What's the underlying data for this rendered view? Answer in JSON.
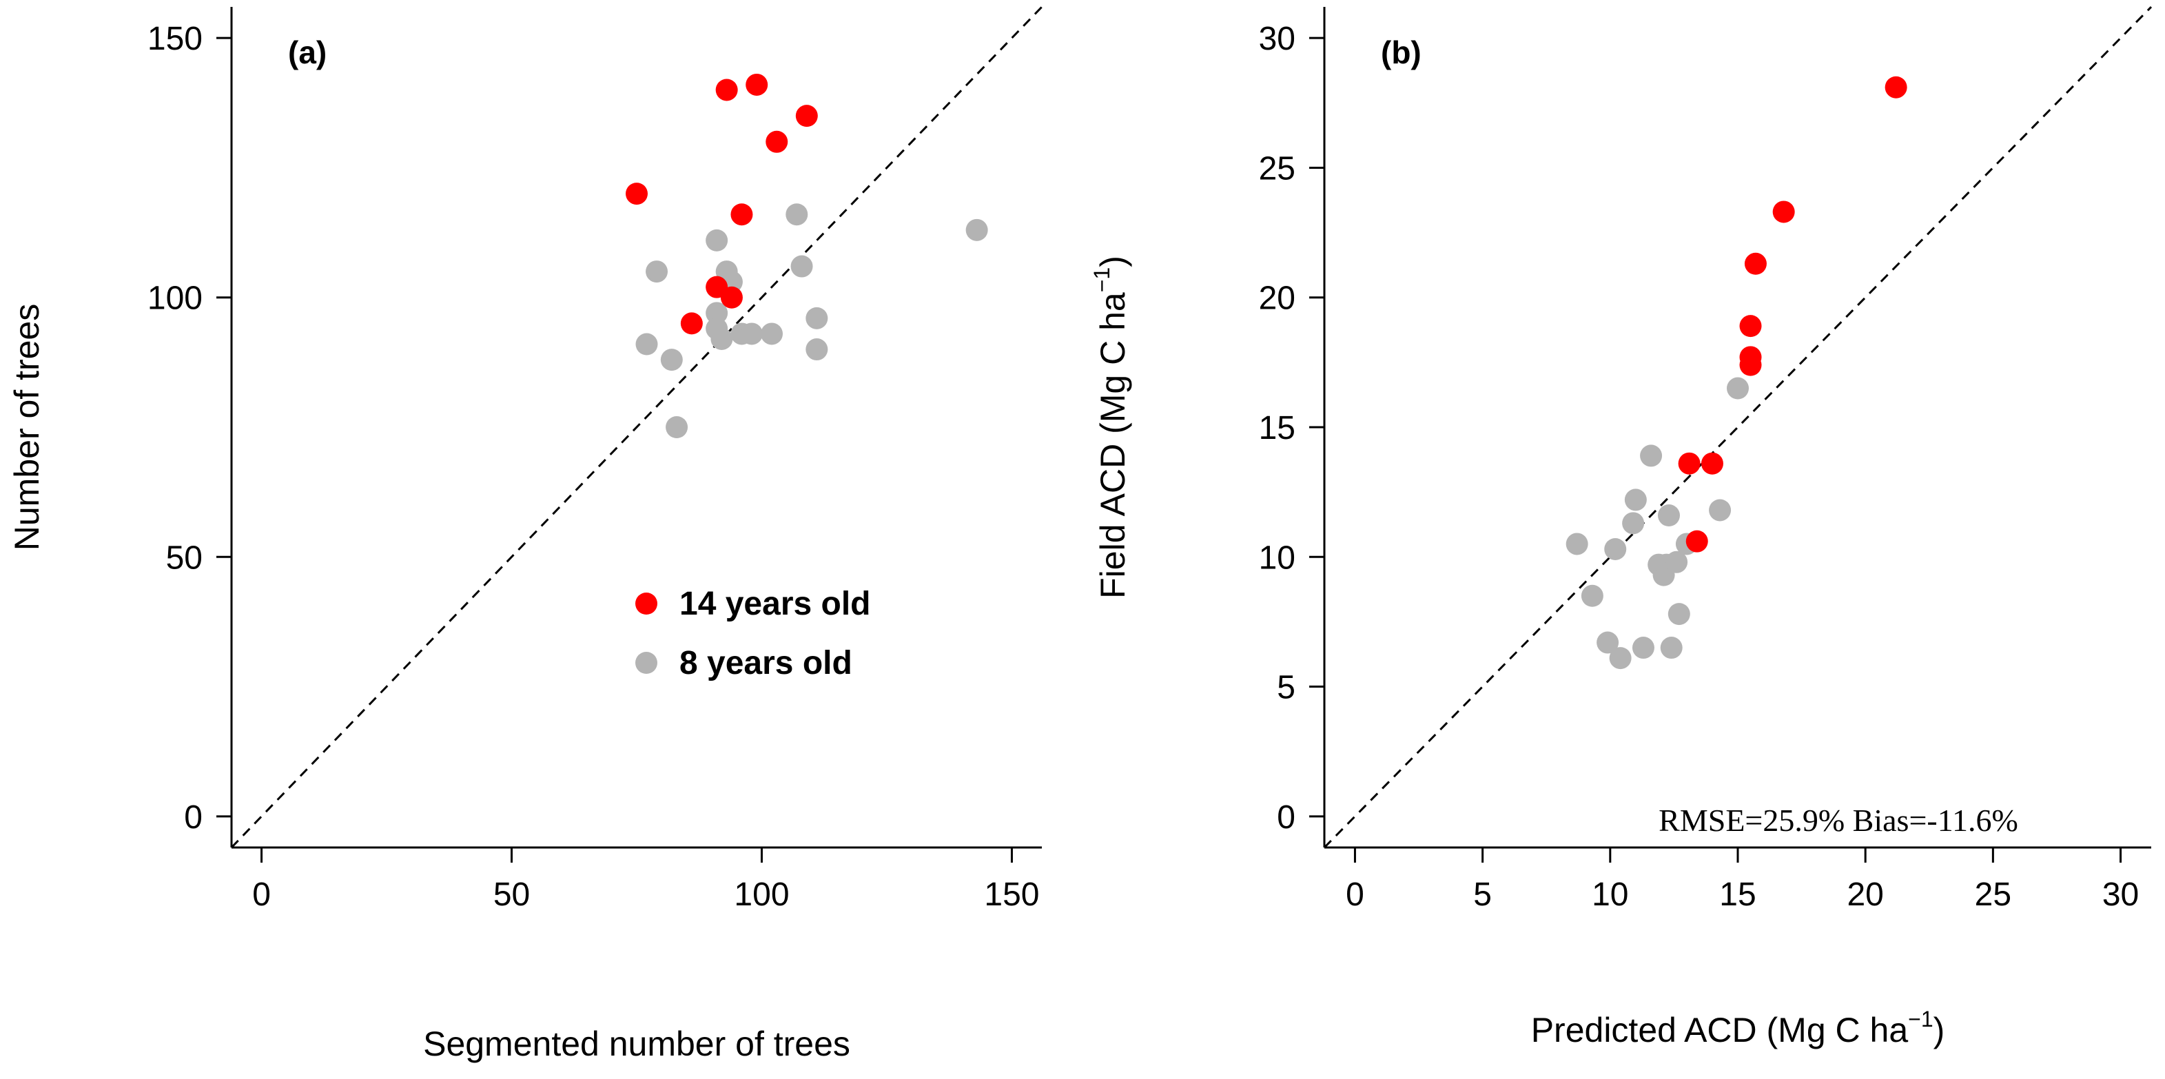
{
  "colors": {
    "series_14": "#ff0000",
    "series_8": "#b3b3b3",
    "axis": "#000000",
    "diagonal": "#000000"
  },
  "chart_data": [
    {
      "type": "scatter",
      "panel_label": "(a)",
      "xlabel": "Segmented number of trees",
      "ylabel": "Number of trees",
      "xlim": [
        -6,
        156
      ],
      "ylim": [
        -6,
        156
      ],
      "xticks": [
        0,
        50,
        100,
        150
      ],
      "yticks": [
        0,
        50,
        100,
        150
      ],
      "grid": false,
      "diagonal": "1:1 dashed line",
      "legend": {
        "placement": "inside-lower-right",
        "entries": [
          "14 years old",
          "8 years old"
        ]
      },
      "series": [
        {
          "name": "14 years old",
          "color": "#ff0000",
          "points": [
            [
              75,
              120
            ],
            [
              86,
              95
            ],
            [
              91,
              102
            ],
            [
              93,
              140
            ],
            [
              94,
              100
            ],
            [
              96,
              116
            ],
            [
              99,
              141
            ],
            [
              103,
              130
            ],
            [
              109,
              135
            ]
          ]
        },
        {
          "name": "8 years old",
          "color": "#b3b3b3",
          "points": [
            [
              77,
              91
            ],
            [
              79,
              105
            ],
            [
              82,
              88
            ],
            [
              83,
              75
            ],
            [
              91,
              111
            ],
            [
              91,
              97
            ],
            [
              91,
              94
            ],
            [
              92,
              92
            ],
            [
              93,
              105
            ],
            [
              94,
              103
            ],
            [
              96,
              93
            ],
            [
              98,
              93
            ],
            [
              102,
              93
            ],
            [
              107,
              116
            ],
            [
              108,
              106
            ],
            [
              111,
              96
            ],
            [
              111,
              90
            ],
            [
              143,
              113
            ]
          ]
        }
      ]
    },
    {
      "type": "scatter",
      "panel_label": "(b)",
      "xlabel": "Predicted ACD (Mg C ha",
      "xlabel_sup": "−1",
      "xlabel_end": ")",
      "ylabel": "Field ACD (Mg C ha",
      "ylabel_sup": "−1",
      "ylabel_end": ")",
      "xlim": [
        -1.2,
        31.2
      ],
      "ylim": [
        -1.2,
        31.2
      ],
      "xticks": [
        0,
        5,
        10,
        15,
        20,
        25,
        30
      ],
      "yticks": [
        0,
        5,
        10,
        15,
        20,
        25,
        30
      ],
      "grid": false,
      "diagonal": "1:1 dashed line",
      "annotation": "RMSE=25.9% Bias=-11.6%",
      "series": [
        {
          "name": "14 years old",
          "color": "#ff0000",
          "points": [
            [
              13.4,
              10.6
            ],
            [
              13.1,
              13.6
            ],
            [
              14.0,
              13.6
            ],
            [
              15.5,
              17.4
            ],
            [
              15.5,
              17.7
            ],
            [
              15.5,
              18.9
            ],
            [
              15.7,
              21.3
            ],
            [
              16.8,
              23.3
            ],
            [
              21.2,
              28.1
            ]
          ]
        },
        {
          "name": "8 years old",
          "color": "#b3b3b3",
          "points": [
            [
              8.7,
              10.5
            ],
            [
              9.3,
              8.5
            ],
            [
              9.9,
              6.7
            ],
            [
              10.2,
              10.3
            ],
            [
              10.4,
              6.1
            ],
            [
              10.9,
              11.3
            ],
            [
              11.0,
              12.2
            ],
            [
              11.3,
              6.5
            ],
            [
              11.6,
              13.9
            ],
            [
              11.9,
              9.7
            ],
            [
              12.1,
              9.3
            ],
            [
              12.2,
              9.7
            ],
            [
              12.3,
              11.6
            ],
            [
              12.4,
              6.5
            ],
            [
              12.6,
              9.8
            ],
            [
              12.7,
              7.8
            ],
            [
              13.0,
              10.5
            ],
            [
              14.3,
              11.8
            ],
            [
              15.0,
              16.5
            ]
          ]
        }
      ]
    }
  ]
}
